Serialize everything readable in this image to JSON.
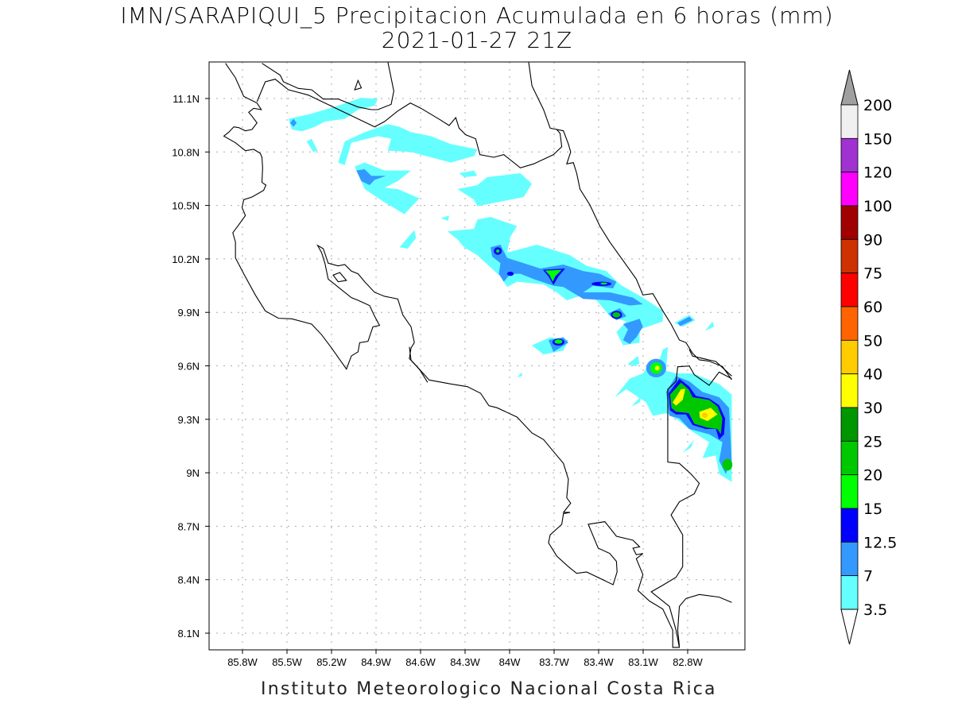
{
  "title": {
    "line1": "IMN/SARAPIQUI_5 Precipitacion Acumulada en 6 horas (mm)",
    "line2": "2021-01-27 21Z"
  },
  "footer": "Instituto Meteorologico Nacional Costa Rica",
  "map": {
    "lon_ticks": [
      "85.8W",
      "85.5W",
      "85.2W",
      "84.9W",
      "84.6W",
      "84.3W",
      "84W",
      "83.7W",
      "83.4W",
      "83.1W",
      "82.8W"
    ],
    "lat_ticks": [
      "11.1N",
      "10.8N",
      "10.5N",
      "10.2N",
      "9.9N",
      "9.6N",
      "9.3N",
      "9N",
      "8.7N",
      "8.4N",
      "8.1N"
    ],
    "lon_range": [
      -86.03,
      -82.41
    ],
    "lat_range": [
      8.01,
      11.3
    ]
  },
  "colorbar": {
    "labels": [
      "200",
      "150",
      "120",
      "100",
      "90",
      "75",
      "60",
      "50",
      "40",
      "30",
      "25",
      "20",
      "15",
      "12.5",
      "7",
      "3.5"
    ],
    "colors": [
      "#f0f0f0",
      "#a032d2",
      "#ff00ff",
      "#a00000",
      "#cd3200",
      "#ff0000",
      "#ff6400",
      "#ffcc00",
      "#ffff00",
      "#009600",
      "#00c800",
      "#00ff00",
      "#0000ff",
      "#3399ff",
      "#66ffff"
    ],
    "over_color": "#a0a0a0",
    "under_color": "#ffffff"
  }
}
